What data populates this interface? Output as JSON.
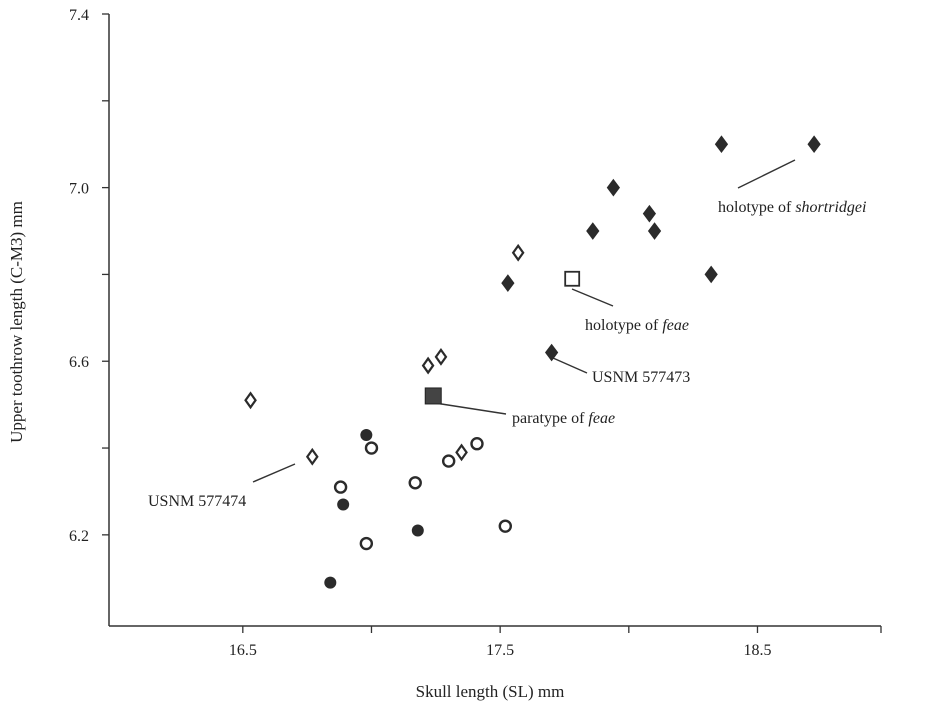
{
  "chart_data": {
    "type": "scatter",
    "xlabel": "Skull length (SL) mm",
    "ylabel": "Upper toothrow length (C-M3) mm",
    "xlim": [
      15.98,
      18.98
    ],
    "ylim": [
      5.99,
      7.4
    ],
    "x_ticks": [
      {
        "value": 16.5,
        "label": "16.5"
      },
      {
        "value": 17.5,
        "label": "17.5"
      },
      {
        "value": 18.5,
        "label": "18.5"
      }
    ],
    "x_minor_ticks": [
      17.0,
      18.0,
      18.98
    ],
    "y_ticks": [
      {
        "value": 6.2,
        "label": "6.2"
      },
      {
        "value": 6.6,
        "label": "6.6"
      },
      {
        "value": 7.0,
        "label": "7.0"
      },
      {
        "value": 7.4,
        "label": "7.4"
      }
    ],
    "y_minor_ticks": [
      6.4,
      6.8,
      7.2
    ],
    "grid": false,
    "series": [
      {
        "marker": "filled-diamond",
        "points": [
          {
            "x": 18.36,
            "y": 7.1
          },
          {
            "x": 18.72,
            "y": 7.1
          },
          {
            "x": 17.94,
            "y": 7.0
          },
          {
            "x": 18.08,
            "y": 6.94
          },
          {
            "x": 17.86,
            "y": 6.9
          },
          {
            "x": 18.1,
            "y": 6.9
          },
          {
            "x": 17.53,
            "y": 6.78
          },
          {
            "x": 18.32,
            "y": 6.8
          },
          {
            "x": 17.7,
            "y": 6.62
          }
        ]
      },
      {
        "marker": "open-diamond",
        "points": [
          {
            "x": 16.53,
            "y": 6.51
          },
          {
            "x": 16.77,
            "y": 6.38
          },
          {
            "x": 17.22,
            "y": 6.59
          },
          {
            "x": 17.27,
            "y": 6.61
          },
          {
            "x": 17.35,
            "y": 6.39
          },
          {
            "x": 17.57,
            "y": 6.85
          }
        ]
      },
      {
        "marker": "filled-circle",
        "points": [
          {
            "x": 16.98,
            "y": 6.43
          },
          {
            "x": 16.89,
            "y": 6.27
          },
          {
            "x": 17.18,
            "y": 6.21
          },
          {
            "x": 16.84,
            "y": 6.09
          }
        ]
      },
      {
        "marker": "open-circle",
        "points": [
          {
            "x": 17.0,
            "y": 6.4
          },
          {
            "x": 16.88,
            "y": 6.31
          },
          {
            "x": 17.17,
            "y": 6.32
          },
          {
            "x": 17.3,
            "y": 6.37
          },
          {
            "x": 17.41,
            "y": 6.41
          },
          {
            "x": 16.98,
            "y": 6.18
          },
          {
            "x": 17.52,
            "y": 6.22
          }
        ]
      },
      {
        "marker": "open-square",
        "points": [
          {
            "x": 17.78,
            "y": 6.79
          }
        ]
      },
      {
        "marker": "filled-square",
        "points": [
          {
            "x": 17.24,
            "y": 6.52
          }
        ]
      }
    ],
    "annotations": [
      {
        "text_before": "holotype of ",
        "text_italic": "shortridgei",
        "point": {
          "x": 18.72,
          "y": 7.1
        }
      },
      {
        "text_before": "holotype of ",
        "text_italic": "feae",
        "point": {
          "x": 17.78,
          "y": 6.79
        }
      },
      {
        "text_before": "USNM 577473",
        "text_italic": "",
        "point": {
          "x": 17.7,
          "y": 6.62
        }
      },
      {
        "text_before": "paratype of ",
        "text_italic": "feae",
        "point": {
          "x": 17.24,
          "y": 6.52
        }
      },
      {
        "text_before": "USNM 577474",
        "text_italic": "",
        "point": {
          "x": 16.77,
          "y": 6.38
        }
      }
    ]
  }
}
